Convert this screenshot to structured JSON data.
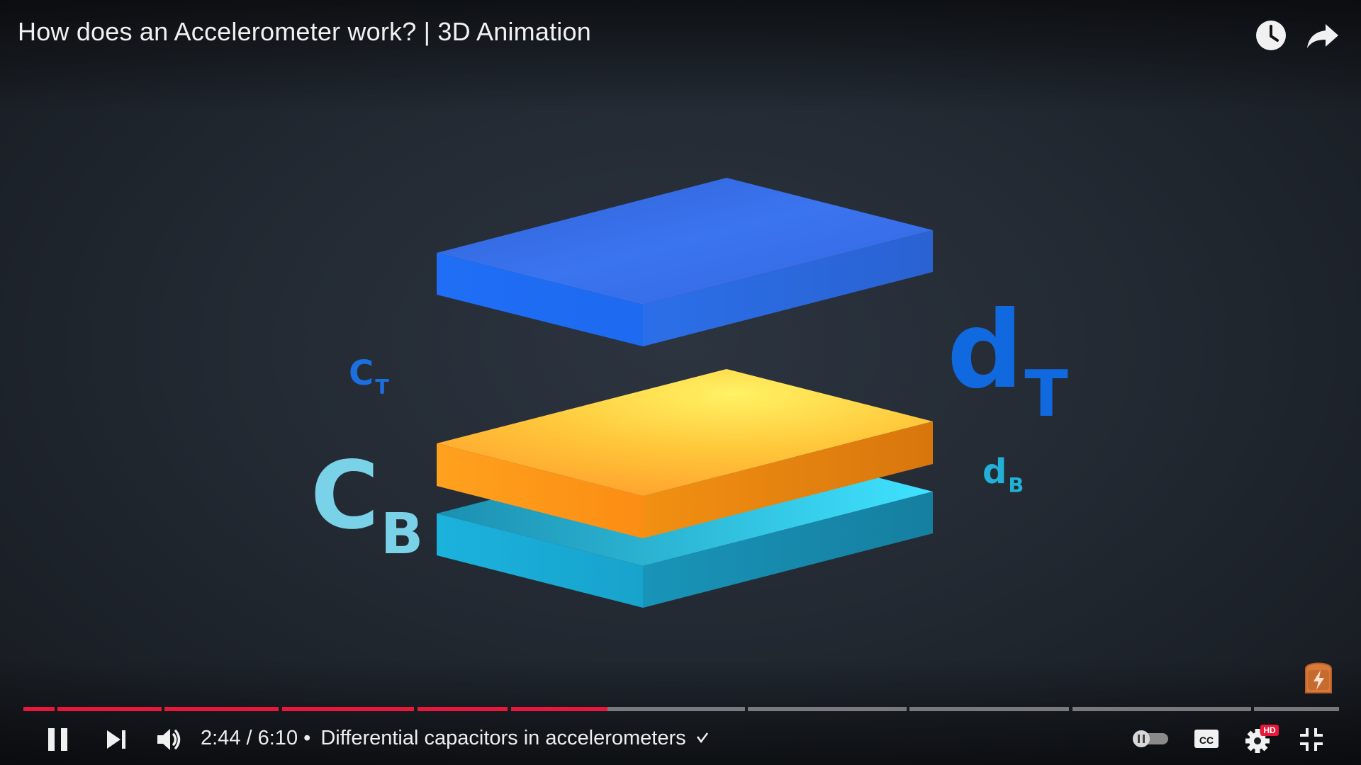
{
  "video": {
    "title": "How does an Accelerometer work? | 3D Animation"
  },
  "overlay_labels": {
    "ct": {
      "main": "C",
      "sub": "T"
    },
    "cb": {
      "main": "C",
      "sub": "B"
    },
    "dt": {
      "main": "d",
      "sub": "T"
    },
    "db": {
      "main": "d",
      "sub": "B"
    }
  },
  "plates": {
    "top_color": "#2f6df0",
    "middle_color": "#ffb43a",
    "bottom_color": "#2ab4d9"
  },
  "player": {
    "current_time": "2:44",
    "separator": " / ",
    "duration": "6:10",
    "bullet": " • ",
    "chapter_title": "Differential capacitors in accelerometers",
    "progress_played": 0.444,
    "accent_color": "#e8183a",
    "hd_badge": "HD",
    "cc_label": "CC",
    "icons": {
      "watch_later": "clock-icon",
      "share": "share-arrow-icon",
      "pause": "pause-icon",
      "next": "next-icon",
      "volume": "volume-icon",
      "chapter_chevron": "chevron-right-icon",
      "autoplay": "autoplay-toggle-icon",
      "captions": "cc-icon",
      "settings": "settings-gear-icon",
      "fullscreen_exit": "fullscreen-exit-icon",
      "extension": "bolt-badge-icon"
    }
  }
}
